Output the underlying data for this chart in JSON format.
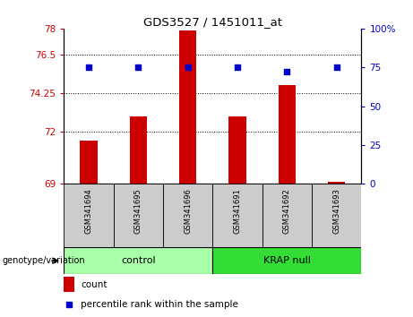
{
  "title": "GDS3527 / 1451011_at",
  "samples": [
    "GSM341694",
    "GSM341695",
    "GSM341696",
    "GSM341691",
    "GSM341692",
    "GSM341693"
  ],
  "group_labels": [
    "control",
    "KRAP null"
  ],
  "bar_values": [
    71.5,
    72.9,
    77.9,
    72.9,
    74.7,
    69.1
  ],
  "dot_values": [
    75,
    75,
    75,
    75,
    72,
    75
  ],
  "bar_color": "#cc0000",
  "dot_color": "#0000cc",
  "ylim_left": [
    69,
    78
  ],
  "ylim_right": [
    0,
    100
  ],
  "yticks_left": [
    69,
    72,
    74.25,
    76.5,
    78
  ],
  "ytick_labels_left": [
    "69",
    "72",
    "74.25",
    "76.5",
    "78"
  ],
  "yticks_right": [
    0,
    25,
    50,
    75,
    100
  ],
  "ytick_labels_right": [
    "0",
    "25",
    "50",
    "75",
    "100%"
  ],
  "hlines": [
    72,
    74.25,
    76.5
  ],
  "bar_width": 0.35,
  "legend_count_label": "count",
  "legend_pct_label": "percentile rank within the sample",
  "genotype_label": "genotype/variation",
  "background_color": "#ffffff",
  "control_color": "#aaffaa",
  "krap_color": "#33dd33"
}
